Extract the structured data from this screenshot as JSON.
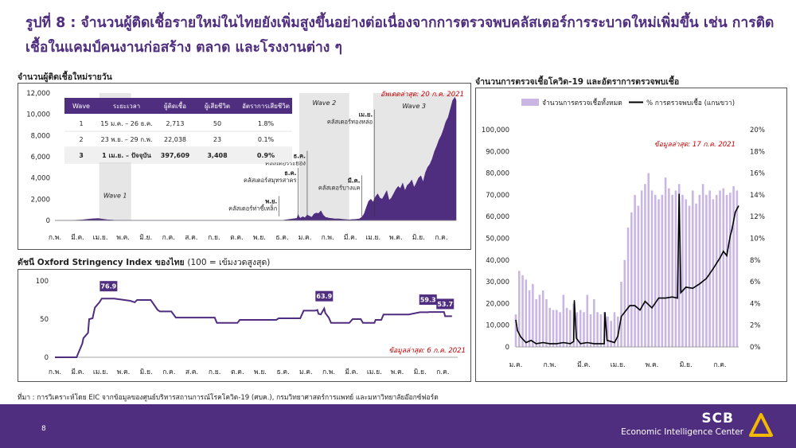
{
  "header": {
    "title": "รูปที่ 8 : จำนวนผู้ติดเชื้อรายใหม่ในไทยยังเพิ่มสูงขึ้นอย่างต่อเนื่องจากการตรวจพบคลัสเตอร์การระบาดใหม่เพิ่มขึ้น เช่น การติดเชื้อในแคมป์คนงานก่อสร้าง ตลาด และโรงงานต่าง ๆ"
  },
  "panels": {
    "cases_title": "จำนวนผู้ติดเชื้อใหม่รายวัน",
    "stringency_title": "ดัชนี Oxford Stringency Index ของไทย",
    "stringency_note": "(100 = เข้มงวดสูงสุด)",
    "tests_title": "จำนวนการตรวจเชื้อโควิด-19  และอัตราการตรวจพบเชื้อ"
  },
  "wave_table": {
    "headers": [
      "Wave",
      "ระยะเวลา",
      "ผู้ติดเชื้อ",
      "ผู้เสียชีวิต",
      "อัตราการเสียชีวิต"
    ],
    "rows": [
      [
        "1",
        "15 ม.ค. – 26 ธ.ค.",
        "2,713",
        "50",
        "1.8%"
      ],
      [
        "2",
        "23 พ.ย. – 29 ก.พ.",
        "22,038",
        "23",
        "0.1%"
      ],
      [
        "3",
        "1 เม.ย. – ปัจจุบัน",
        "397,609",
        "3,408",
        "0.9%"
      ]
    ]
  },
  "footer": {
    "source": "ที่มา : การวิเคราะห์โดย EIC จากข้อมูลของศูนย์บริหารสถานการณ์โรคโควิด-19 (ศบค.), กรมวิทยาศาสตร์การแพทย์ และมหาวิทยาลัยอ๊อกซ์ฟอร์ด",
    "page": "8",
    "brand": "SCB",
    "brand_sub": "Economic Intelligence Center"
  },
  "colors": {
    "purple": "#4f2d7f",
    "lavender": "#c9b6e4",
    "red": "#c00000",
    "grey_band": "#e6e6e6"
  },
  "chart_data": [
    {
      "id": "daily_cases",
      "type": "area",
      "title": "จำนวนผู้ติดเชื้อใหม่รายวัน",
      "updated": "อัพเดตล่าสุด: 20 ก.ค. 2021",
      "x_ticks": [
        "ก.พ.",
        "มี.ค.",
        "เม.ย.",
        "พ.ค.",
        "มิ.ย.",
        "ก.ค.",
        "ส.ค.",
        "ก.ย.",
        "ต.ค.",
        "พ.ย.",
        "ธ.ค.",
        "ม.ค.",
        "ก.พ.",
        "มี.ค.",
        "เม.ย.",
        "พ.ค.",
        "มิ.ย.",
        "ก.ค."
      ],
      "y_ticks": [
        "0",
        "2,000",
        "4,000",
        "6,000",
        "8,000",
        "10,000",
        "12,000"
      ],
      "ylim": [
        0,
        12000
      ],
      "x_months": [
        0,
        17.65
      ],
      "series": [
        {
          "x": [
            0,
            0.8,
            1.2,
            1.6,
            1.9,
            2.1,
            2.3,
            2.6,
            3.0,
            4.0,
            6.0,
            8.0,
            10.0,
            10.65,
            10.7,
            10.75,
            10.8,
            10.9,
            11.0,
            11.1,
            11.2,
            11.3,
            11.4,
            11.5,
            11.6,
            11.7,
            11.8,
            11.9,
            12.0,
            12.1,
            12.2,
            12.3,
            12.4,
            12.5,
            12.6,
            12.7,
            12.8,
            12.9,
            13.0,
            13.1,
            13.2,
            13.3,
            13.4,
            13.5,
            13.6,
            13.7,
            13.8,
            13.9,
            14.0,
            14.1,
            14.2,
            14.3,
            14.4,
            14.5,
            14.6,
            14.7,
            14.8,
            14.9,
            15.0,
            15.1,
            15.2,
            15.3,
            15.4,
            15.5,
            15.6,
            15.7,
            15.8,
            15.9,
            16.0,
            16.1,
            16.2,
            16.3,
            16.4,
            16.5,
            16.6,
            16.7,
            16.8,
            16.9,
            17.0,
            17.1,
            17.2,
            17.3,
            17.4,
            17.5,
            17.6,
            17.65
          ],
          "y": [
            0,
            10,
            50,
            150,
            188,
            120,
            60,
            20,
            8,
            5,
            5,
            5,
            5,
            200,
            548,
            300,
            200,
            350,
            250,
            500,
            400,
            300,
            600,
            700,
            650,
            900,
            500,
            300,
            250,
            200,
            180,
            150,
            150,
            140,
            120,
            100,
            80,
            60,
            70,
            90,
            100,
            120,
            150,
            300,
            600,
            1200,
            1800,
            2000,
            1700,
            2200,
            2500,
            2100,
            2000,
            2400,
            2800,
            1900,
            2100,
            2500,
            2900,
            3200,
            3000,
            3500,
            2800,
            3300,
            3500,
            3800,
            3100,
            3500,
            4000,
            4200,
            3600,
            4500,
            5000,
            5300,
            5800,
            6500,
            7000,
            7600,
            8000,
            8600,
            9300,
            9700,
            10500,
            11300,
            11600,
            11300
          ]
        }
      ],
      "waves": [
        {
          "label": "Wave 1",
          "x0": 1.95,
          "x1": 3.35
        },
        {
          "label": "Wave 2",
          "x0": 10.75,
          "x1": 12.95
        },
        {
          "label": "Wave 3",
          "x0": 14.0,
          "x1": 17.6
        }
      ],
      "annotations": [
        {
          "date": "พ.ย.",
          "text": "คลัสเตอร์ท่าขี้เหล็ก",
          "x": 9.85,
          "y": 1250
        },
        {
          "date": "ธ.ค.",
          "text": "คลัสเตอร์สมุทรสาคร",
          "x": 10.7,
          "y": 3900
        },
        {
          "date": "ธ.ค.",
          "text": "คลัสเตอร์ระยอง",
          "x": 11.1,
          "y": 5500
        },
        {
          "date": "มี.ค.",
          "text": "คลัสเตอร์บางแค",
          "x": 13.5,
          "y": 3200
        },
        {
          "date": "เม.ย.",
          "text": "คลัสเตอร์ทองหล่อ",
          "x": 14.05,
          "y": 9400
        }
      ]
    },
    {
      "id": "stringency",
      "type": "line",
      "title": "ดัชนี Oxford Stringency Index ของไทย",
      "updated": "ข้อมูลล่าสุด: 6 ก.ค. 2021",
      "x_ticks": [
        "ก.พ.",
        "มี.ค.",
        "เม.ย.",
        "พ.ค.",
        "มิ.ย.",
        "ก.ค.",
        "ส.ค.",
        "ก.ย.",
        "ต.ค.",
        "พ.ย.",
        "ธ.ค.",
        "ม.ค.",
        "ก.พ.",
        "มี.ค.",
        "เม.ย.",
        "พ.ค.",
        "มิ.ย.",
        "ก.ค."
      ],
      "y_ticks": [
        "0",
        "50",
        "100"
      ],
      "ylim": [
        0,
        100
      ],
      "series": [
        {
          "x": [
            0,
            0.95,
            1.2,
            1.25,
            1.45,
            1.5,
            1.65,
            1.75,
            1.95,
            2.05,
            2.6,
            3.3,
            3.5,
            3.6,
            4.2,
            4.5,
            4.6,
            5.1,
            5.3,
            7.0,
            7.1,
            8.0,
            8.1,
            9.7,
            9.8,
            10.75,
            10.9,
            11.4,
            11.5,
            11.55,
            11.65,
            11.8,
            11.85,
            12.0,
            12.1,
            12.9,
            13.05,
            13.4,
            13.5,
            14.0,
            14.05,
            14.3,
            14.4,
            15.5,
            16.0,
            16.35,
            16.4,
            17.05,
            17.1,
            17.4
          ],
          "y": [
            0,
            0,
            18,
            25,
            32,
            50,
            51,
            65,
            72,
            76.9,
            76.9,
            74,
            72,
            75,
            75,
            62,
            60,
            60,
            52,
            52,
            45,
            45,
            49,
            49,
            51,
            51,
            61,
            61,
            62,
            57,
            56,
            63.9,
            58,
            52,
            45,
            45,
            50,
            50,
            45,
            45,
            49,
            49,
            56,
            56,
            59,
            59,
            59.3,
            59.3,
            53.7,
            53.7
          ]
        }
      ],
      "labels": [
        {
          "value": "76.9",
          "x": 2.35,
          "y": 76.9
        },
        {
          "value": "63.9",
          "x": 11.8,
          "y": 63.9
        },
        {
          "value": "59.3",
          "x": 16.35,
          "y": 59.3
        },
        {
          "value": "53.7",
          "x": 17.1,
          "y": 53.7
        }
      ]
    },
    {
      "id": "tests",
      "type": "bar+line",
      "title": "จำนวนการตรวจเชื้อโควิด-19  และอัตราการตรวจพบเชื้อ",
      "updated": "ข้อมูลล่าสุด: 17 ก.ค. 2021",
      "legend": [
        "จำนวนการตรวจเชื้อทั้งหมด",
        "% การตรวจพบเชื้อ (แกนขวา)"
      ],
      "x_ticks": [
        "ม.ค.",
        "ก.พ.",
        "มี.ค.",
        "เม.ย.",
        "พ.ค.",
        "มิ.ย.",
        "ก.ค."
      ],
      "y_ticks": [
        "0",
        "10,000",
        "20,000",
        "30,000",
        "40,000",
        "50,000",
        "60,000",
        "70,000",
        "80,000",
        "90,000",
        "100,000"
      ],
      "y2_ticks": [
        "0%",
        "2%",
        "4%",
        "6%",
        "8%",
        "10%",
        "12%",
        "14%",
        "16%",
        "18%",
        "20%"
      ],
      "ylim": [
        0,
        100000
      ],
      "y2lim": [
        0,
        20
      ],
      "x_months": [
        0,
        6.55
      ],
      "bars_x": [
        0.0,
        0.1,
        0.2,
        0.3,
        0.4,
        0.5,
        0.6,
        0.7,
        0.8,
        0.9,
        1.0,
        1.1,
        1.2,
        1.3,
        1.4,
        1.5,
        1.6,
        1.7,
        1.8,
        1.9,
        2.0,
        2.1,
        2.2,
        2.3,
        2.4,
        2.5,
        2.6,
        2.7,
        2.8,
        2.9,
        3.0,
        3.1,
        3.2,
        3.3,
        3.4,
        3.5,
        3.6,
        3.7,
        3.8,
        3.9,
        4.0,
        4.1,
        4.2,
        4.3,
        4.4,
        4.5,
        4.6,
        4.7,
        4.8,
        4.9,
        5.0,
        5.1,
        5.2,
        5.3,
        5.4,
        5.5,
        5.6,
        5.7,
        5.8,
        5.9,
        6.0,
        6.1,
        6.2,
        6.3,
        6.4,
        6.5
      ],
      "bars": [
        15000,
        35000,
        33000,
        31000,
        26000,
        29000,
        22000,
        24000,
        26000,
        22000,
        18000,
        17000,
        17000,
        16000,
        24000,
        18000,
        17000,
        20000,
        16000,
        17000,
        16000,
        24000,
        15000,
        22000,
        16000,
        15000,
        16000,
        14000,
        12000,
        16000,
        14000,
        30000,
        40000,
        55000,
        62000,
        70000,
        65000,
        72000,
        75000,
        80000,
        72000,
        70000,
        68000,
        70000,
        78000,
        73000,
        70000,
        72000,
        75000,
        70000,
        68000,
        65000,
        72000,
        66000,
        70000,
        75000,
        70000,
        72000,
        68000,
        70000,
        72000,
        73000,
        70000,
        71000,
        74000,
        72000
      ],
      "rate_x": [
        0,
        0.05,
        0.15,
        0.3,
        0.45,
        0.6,
        0.8,
        1.0,
        1.2,
        1.4,
        1.6,
        1.7,
        1.72,
        1.78,
        1.9,
        2.1,
        2.3,
        2.5,
        2.6,
        2.62,
        2.68,
        2.8,
        2.9,
        3.0,
        3.1,
        3.2,
        3.35,
        3.5,
        3.65,
        3.8,
        4.0,
        4.2,
        4.4,
        4.6,
        4.75,
        4.8,
        4.85,
        5.0,
        5.2,
        5.4,
        5.6,
        5.8,
        6.0,
        6.1,
        6.2,
        6.3,
        6.35,
        6.45,
        6.55
      ],
      "rate": [
        2.5,
        1.5,
        0.9,
        0.4,
        0.6,
        0.3,
        0.4,
        0.3,
        0.3,
        0.4,
        0.3,
        0.5,
        4.3,
        0.8,
        0.3,
        0.4,
        0.3,
        0.3,
        0.3,
        3.2,
        0.6,
        0.5,
        0.4,
        1.0,
        2.8,
        3.2,
        3.8,
        3.8,
        3.4,
        4.2,
        3.6,
        4.5,
        4.5,
        4.6,
        4.5,
        14.1,
        5.0,
        5.5,
        5.4,
        5.8,
        6.3,
        7.2,
        8.2,
        8.8,
        8.4,
        10.2,
        10.8,
        12.4,
        13.0
      ]
    }
  ]
}
